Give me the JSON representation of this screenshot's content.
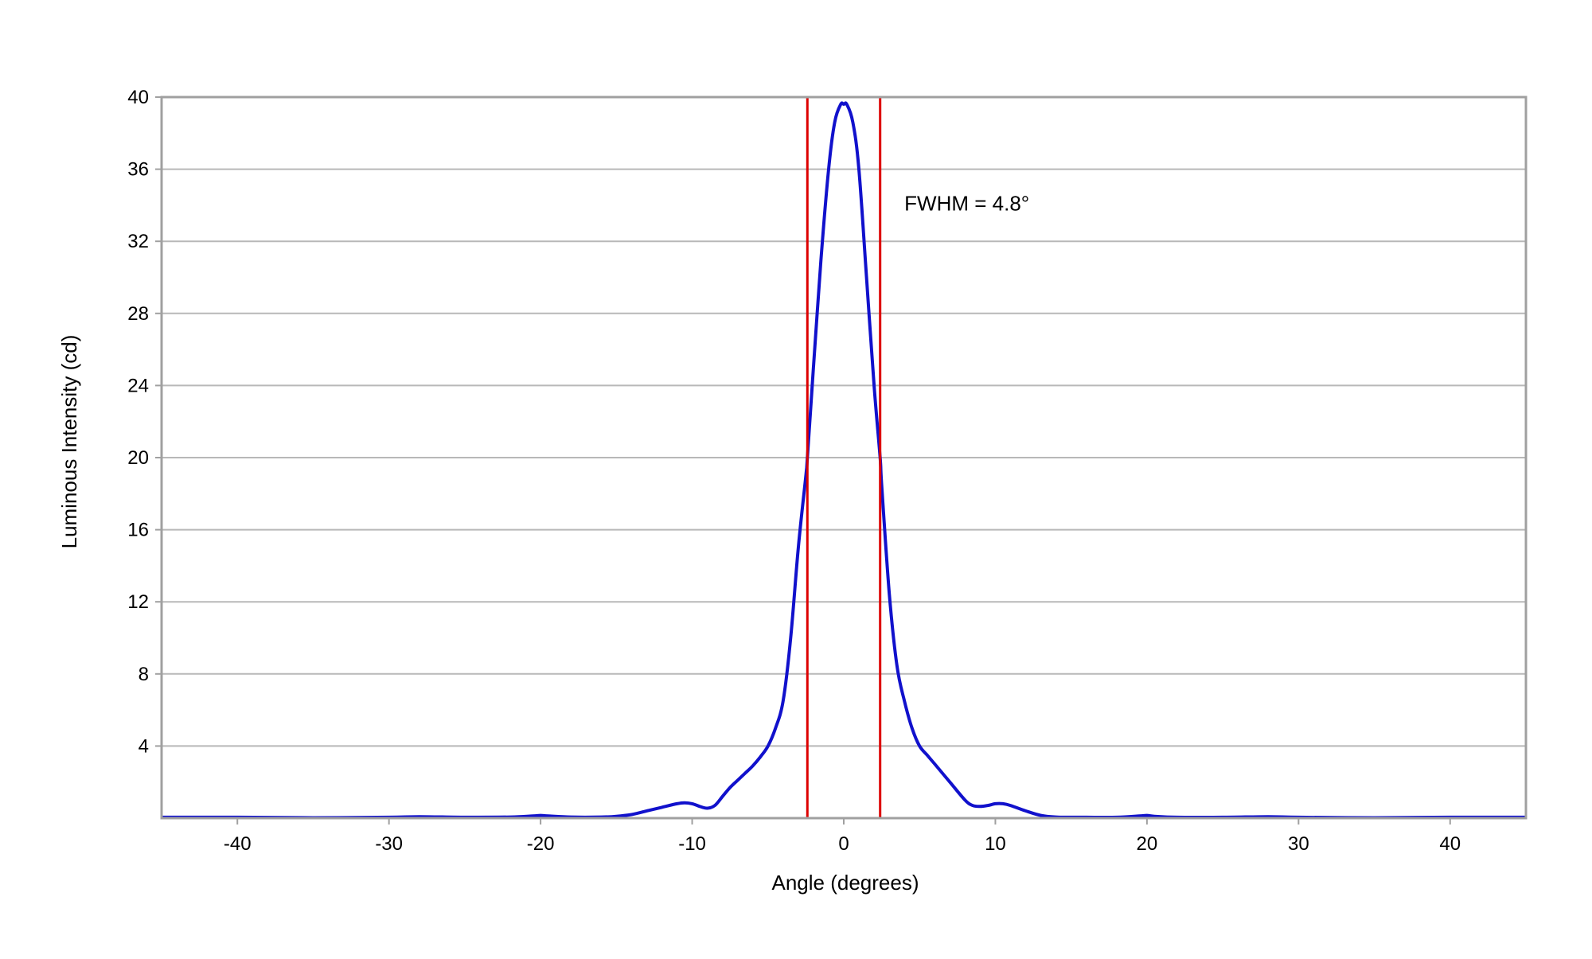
{
  "chart_data": {
    "type": "line",
    "title": "",
    "xlabel": "Angle (degrees)",
    "ylabel": "Luminous Intensity (cd)",
    "xlim": [
      -45,
      45
    ],
    "ylim": [
      0,
      40
    ],
    "grid": true,
    "x_ticks": [
      -40,
      -30,
      -20,
      -10,
      0,
      10,
      20,
      30,
      40
    ],
    "y_ticks": [
      4,
      8,
      12,
      16,
      20,
      24,
      28,
      32,
      36,
      40
    ],
    "x_tick_labels": [
      "-40",
      "-30",
      "-20",
      "-10",
      "0",
      "10",
      "20",
      "30",
      "40"
    ],
    "y_tick_labels": [
      "4",
      "8",
      "12",
      "16",
      "20",
      "24",
      "28",
      "32",
      "36",
      "40"
    ],
    "series": [
      {
        "color": "#1111cc",
        "x": [
          -45,
          -40,
          -35,
          -30,
          -28,
          -25,
          -22,
          -20.5,
          -20,
          -19.5,
          -18,
          -16,
          -15,
          -14,
          -13,
          -12,
          -11,
          -10.5,
          -10,
          -9.5,
          -9,
          -8.5,
          -8,
          -7.5,
          -7,
          -6.5,
          -6,
          -5.5,
          -5,
          -4.5,
          -4,
          -3.5,
          -3,
          -2.5,
          -2.4,
          -2,
          -1.5,
          -1,
          -0.6,
          -0.2,
          0,
          0.2,
          0.6,
          1,
          1.5,
          2,
          2.4,
          2.5,
          3,
          3.5,
          4,
          4.5,
          5,
          5.5,
          6,
          7,
          8,
          8.5,
          9,
          9.5,
          10,
          10.5,
          11,
          12,
          13,
          14,
          15,
          16,
          18,
          19.5,
          20,
          20.5,
          22,
          25,
          28,
          30,
          35,
          40,
          45
        ],
        "y": [
          0.05,
          0.05,
          0.02,
          0.05,
          0.08,
          0.05,
          0.06,
          0.12,
          0.15,
          0.12,
          0.06,
          0.06,
          0.1,
          0.2,
          0.4,
          0.6,
          0.8,
          0.85,
          0.8,
          0.65,
          0.55,
          0.7,
          1.2,
          1.7,
          2.1,
          2.5,
          2.9,
          3.4,
          4.0,
          5.0,
          6.5,
          10.0,
          15.0,
          19.0,
          20.0,
          25.0,
          31.0,
          36.0,
          38.6,
          39.6,
          39.6,
          39.6,
          38.6,
          36.0,
          30.0,
          24.0,
          20.0,
          18.5,
          12.5,
          8.5,
          6.5,
          5.0,
          4.0,
          3.5,
          3.0,
          2.0,
          1.0,
          0.7,
          0.65,
          0.7,
          0.8,
          0.8,
          0.7,
          0.4,
          0.15,
          0.06,
          0.05,
          0.05,
          0.05,
          0.12,
          0.15,
          0.1,
          0.05,
          0.05,
          0.08,
          0.05,
          0.02,
          0.05,
          0.05
        ]
      }
    ],
    "vertical_lines": [
      {
        "x": -2.4,
        "color": "#dd0000"
      },
      {
        "x": 2.4,
        "color": "#dd0000"
      }
    ],
    "annotation": {
      "text": "FWHM = 4.8°",
      "x": 4,
      "y": 33.7
    }
  }
}
